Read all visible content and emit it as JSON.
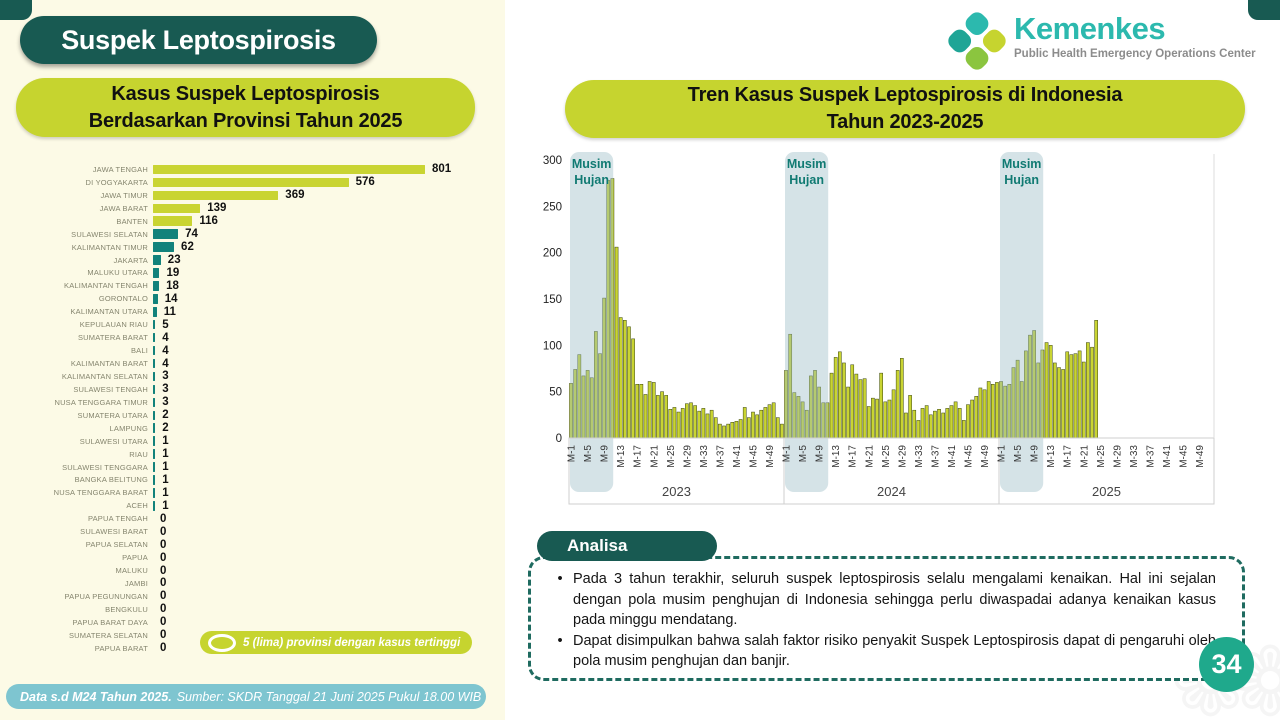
{
  "page": {
    "title": "Suspek Leptospirosis",
    "page_number": "34",
    "footer_bold": "Data s.d M24 Tahun 2025.",
    "footer_rest": "Sumber: SKDR Tanggal 21 Juni 2025 Pukul 18.00 WIB"
  },
  "logo": {
    "brand": "Kemenkes",
    "subtitle": "Public Health Emergency Operations Center"
  },
  "colors": {
    "dark_teal": "#185A52",
    "lime": "#C6D42F",
    "bar_teal": "#12827B",
    "bar_lime": "#C9D432",
    "band_overlay": "rgba(154,189,198,0.42)",
    "season_text": "#107A72",
    "footer_blue": "#7EC5D0",
    "page_circle": "#1FA98C",
    "kemenkes_teal": "#2CB9AE"
  },
  "province_chart": {
    "title_line1": "Kasus Suspek Leptospirosis",
    "title_line2": "Berdasarkan Provinsi Tahun 2025",
    "legend": "5 (lima) provinsi dengan kasus tertinggi"
  },
  "trend_chart": {
    "title_line1": "Tren Kasus Suspek Leptospirosis di Indonesia",
    "title_line2": "Tahun 2023-2025",
    "season_line1": "Musim",
    "season_line2": "Hujan"
  },
  "analysis": {
    "header": "Analisa",
    "bullets": [
      "Pada 3 tahun terakhir, seluruh suspek leptospirosis selalu mengalami kenaikan. Hal ini sejalan dengan pola musim penghujan di Indonesia sehingga perlu diwaspadai adanya kenaikan kasus pada minggu mendatang.",
      "Dapat disimpulkan bahwa salah faktor risiko penyakit Suspek Leptospirosis dapat di pengaruhi oleh pola musim penghujan dan banjir."
    ]
  },
  "chart_data": [
    {
      "type": "bar",
      "orientation": "horizontal",
      "title": "Kasus Suspek Leptospirosis Berdasarkan Provinsi Tahun 2025",
      "highlight_top_n": 5,
      "legend": "5 (lima) provinsi dengan kasus tertinggi",
      "categories": [
        "JAWA TENGAH",
        "DI YOGYAKARTA",
        "JAWA TIMUR",
        "JAWA BARAT",
        "BANTEN",
        "SULAWESI SELATAN",
        "KALIMANTAN TIMUR",
        "JAKARTA",
        "MALUKU UTARA",
        "KALIMANTAN TENGAH",
        "GORONTALO",
        "KALIMANTAN UTARA",
        "KEPULAUAN RIAU",
        "SUMATERA BARAT",
        "BALI",
        "KALIMANTAN BARAT",
        "KALIMANTAN SELATAN",
        "SULAWESI TENGAH",
        "NUSA TENGGARA TIMUR",
        "SUMATERA UTARA",
        "LAMPUNG",
        "SULAWESI UTARA",
        "RIAU",
        "SULAWESI TENGGARA",
        "BANGKA BELITUNG",
        "NUSA TENGGARA BARAT",
        "ACEH",
        "PAPUA TENGAH",
        "SULAWESI BARAT",
        "PAPUA SELATAN",
        "PAPUA",
        "MALUKU",
        "JAMBI",
        "PAPUA PEGUNUNGAN",
        "BENGKULU",
        "PAPUA BARAT DAYA",
        "SUMATERA SELATAN",
        "PAPUA BARAT"
      ],
      "values": [
        801,
        576,
        369,
        139,
        116,
        74,
        62,
        23,
        19,
        18,
        14,
        11,
        5,
        4,
        4,
        4,
        3,
        3,
        3,
        2,
        2,
        1,
        1,
        1,
        1,
        1,
        1,
        0,
        0,
        0,
        0,
        0,
        0,
        0,
        0,
        0,
        0,
        0
      ],
      "xlim": [
        0,
        850
      ]
    },
    {
      "type": "bar",
      "title": "Tren Kasus Suspek Leptospirosis di Indonesia Tahun 2023-2025",
      "ylabel": "",
      "ylim": [
        0,
        300
      ],
      "yticks": [
        0,
        50,
        100,
        150,
        200,
        250,
        300
      ],
      "weeks_per_year": 52,
      "years": [
        "2023",
        "2024",
        "2025"
      ],
      "x_tick_labels": [
        "M-1",
        "M-5",
        "M-9",
        "M-13",
        "M-17",
        "M-21",
        "M-25",
        "M-29",
        "M-33",
        "M-37",
        "M-41",
        "M-45",
        "M-49"
      ],
      "season_label": "Musim Hujan",
      "season_weeks": {
        "start": 1,
        "end": 9
      },
      "series": [
        {
          "name": "2023",
          "values": [
            59,
            74,
            90,
            67,
            73,
            65,
            115,
            91,
            151,
            278,
            280,
            206,
            130,
            127,
            120,
            107,
            58,
            58,
            47,
            61,
            60,
            46,
            50,
            46,
            31,
            33,
            28,
            32,
            37,
            38,
            35,
            29,
            32,
            26,
            30,
            22,
            15,
            13,
            15,
            17,
            18,
            20,
            33,
            22,
            28,
            25,
            30,
            33,
            36,
            38,
            22,
            15
          ]
        },
        {
          "name": "2024",
          "values": [
            73,
            112,
            49,
            45,
            39,
            30,
            67,
            73,
            55,
            38,
            38,
            70,
            87,
            93,
            81,
            55,
            79,
            69,
            63,
            64,
            34,
            43,
            42,
            70,
            39,
            41,
            52,
            73,
            86,
            27,
            46,
            30,
            19,
            32,
            35,
            25,
            29,
            31,
            27,
            32,
            35,
            39,
            32,
            19,
            36,
            41,
            45,
            54,
            52,
            61,
            58,
            60
          ]
        },
        {
          "name": "2025",
          "values": [
            61,
            56,
            58,
            76,
            84,
            61,
            94,
            111,
            116,
            81,
            95,
            103,
            100,
            81,
            76,
            74,
            93,
            90,
            91,
            94,
            82,
            103,
            98,
            127
          ]
        }
      ]
    }
  ]
}
